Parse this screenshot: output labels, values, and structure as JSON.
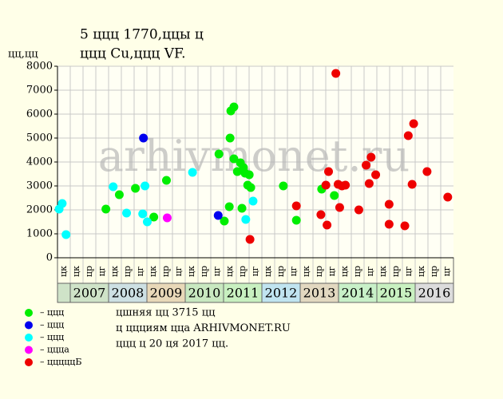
{
  "chart_data": {
    "type": "scatter",
    "title": "5 ццц 1770,ццы ц",
    "subtitle": "ццц Cu,ццц VF.",
    "y_label": "цц,цц",
    "watermark": "arhivmonet.ru",
    "xlim": [
      2006.667,
      2017.0
    ],
    "ylim": [
      0,
      8000
    ],
    "yticks": [
      0,
      1000,
      2000,
      3000,
      4000,
      5000,
      6000,
      7000,
      8000
    ],
    "grid": true,
    "columns": [
      "цк",
      "цк",
      "цр",
      "цг",
      "цк",
      "цр",
      "цг",
      "цк",
      "цр",
      "цг",
      "цк",
      "цр",
      "цг",
      "цк",
      "цр",
      "цг",
      "цк",
      "цр",
      "цг",
      "цк",
      "цр",
      "цг",
      "цк",
      "цр",
      "цг",
      "цк",
      "цр",
      "цг",
      "цк",
      "цр",
      "цг"
    ],
    "periods": [
      "2007",
      "2008",
      "2009",
      "2010",
      "2011",
      "2012",
      "2013",
      "2014",
      "2015",
      "2016"
    ],
    "period_colors": [
      "#cfe3c8",
      "#cde0e3",
      "#e8d8b8",
      "#c8e8c0",
      "#c8f0c0",
      "#c0e4f0",
      "#e2d8c0",
      "#c8f0c8",
      "#c8f0c0",
      "#dcdcdc"
    ],
    "series": [
      {
        "name": "– ццц",
        "color": "#00ee00",
        "x": [
          2007.93,
          2008.28,
          2008.7,
          2009.18,
          2009.51,
          2010.88,
          2011.02,
          2011.15,
          2011.17,
          2011.19,
          2011.27,
          2011.27,
          2011.36,
          2011.44,
          2011.48,
          2011.52,
          2011.56,
          2011.63,
          2011.67,
          2011.71,
          2012.56,
          2012.9,
          2013.56,
          2013.89
        ],
        "values": [
          2033,
          2633,
          2900,
          1700,
          3233,
          4333,
          1533,
          2133,
          5000,
          6133,
          6300,
          4133,
          3600,
          3967,
          2067,
          3767,
          3533,
          3033,
          3467,
          2933,
          3000,
          1567,
          2867,
          2600
        ]
      },
      {
        "name": "– ццц",
        "color": "#0000ee",
        "x": [
          2008.91,
          2010.86
        ],
        "values": [
          5000,
          1767
        ]
      },
      {
        "name": "– ццц",
        "color": "#00ffff",
        "x": [
          2006.71,
          2006.79,
          2006.89,
          2008.12,
          2008.47,
          2008.89,
          2008.95,
          2009.01,
          2010.19,
          2011.58,
          2011.77
        ],
        "values": [
          2033,
          2267,
          967,
          2967,
          1867,
          1833,
          3000,
          1500,
          3567,
          1600,
          2367
        ]
      },
      {
        "name": "– ццца",
        "color": "#ff00ff",
        "x": [
          2009.53
        ],
        "values": [
          1667
        ]
      },
      {
        "name": "– цццццБ",
        "color": "#ee0000",
        "x": [
          2011.69,
          2012.9,
          2013.54,
          2013.67,
          2013.7,
          2013.74,
          2013.93,
          2013.99,
          2014.03,
          2014.09,
          2014.18,
          2014.53,
          2014.72,
          2014.8,
          2014.85,
          2014.97,
          2015.32,
          2015.32,
          2015.73,
          2015.82,
          2015.92,
          2015.96,
          2016.31,
          2016.85
        ],
        "values": [
          767,
          2167,
          1800,
          3033,
          1367,
          3600,
          7700,
          3067,
          2100,
          3000,
          3033,
          2000,
          3867,
          3100,
          4200,
          3467,
          2233,
          1400,
          1333,
          5100,
          3067,
          5600,
          3600,
          2533
        ]
      }
    ],
    "notes": [
      "цшняя цц 3715 цц",
      "ц ццциям цца ARHIVMONET.RU",
      "ццц ц 20 ця 2017 цц."
    ]
  }
}
